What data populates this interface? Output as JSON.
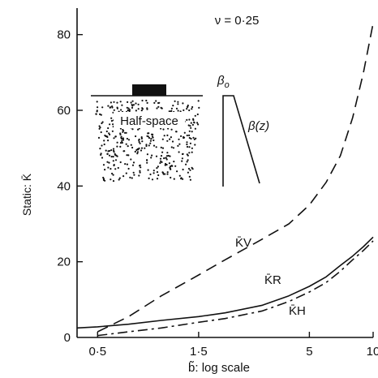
{
  "chart_data": {
    "type": "line",
    "title": "ν = 0·25",
    "xlabel": "b̃: log scale",
    "ylabel": "Static: K̄",
    "x_scale": "log",
    "xlim": [
      0.4,
      10
    ],
    "ylim": [
      0,
      87
    ],
    "x_ticks": [
      {
        "value": 0.5,
        "label": "0·5"
      },
      {
        "value": 1.5,
        "label": "1·5"
      },
      {
        "value": 5,
        "label": "5"
      },
      {
        "value": 10,
        "label": "10"
      }
    ],
    "y_ticks": [
      {
        "value": 0,
        "label": "0"
      },
      {
        "value": 20,
        "label": "20"
      },
      {
        "value": 40,
        "label": "40"
      },
      {
        "value": 60,
        "label": "60"
      },
      {
        "value": 80,
        "label": "80"
      }
    ],
    "grid": false,
    "series": [
      {
        "name": "K̄V",
        "style": "dashed",
        "x": [
          0.5,
          0.7,
          1.0,
          1.5,
          2.0,
          3.0,
          4.0,
          5.0,
          6.0,
          7.0,
          8.0,
          9.0,
          10.0
        ],
        "y": [
          1.5,
          5.5,
          11.0,
          16.5,
          20.5,
          26.0,
          30.0,
          35.0,
          41.0,
          48.0,
          58.0,
          70.0,
          83.0
        ]
      },
      {
        "name": "K̄R",
        "style": "solid",
        "x": [
          0.4,
          0.5,
          0.7,
          1.0,
          1.5,
          2.0,
          3.0,
          4.0,
          5.0,
          6.0,
          7.0,
          8.0,
          9.0,
          10.0
        ],
        "y": [
          2.5,
          2.8,
          3.5,
          4.5,
          5.5,
          6.5,
          8.5,
          11.0,
          13.5,
          16.0,
          19.0,
          21.5,
          24.0,
          26.5
        ]
      },
      {
        "name": "K̄H",
        "style": "dashdot",
        "x": [
          0.5,
          0.7,
          1.0,
          1.5,
          2.0,
          3.0,
          4.0,
          5.0,
          6.0,
          7.0,
          8.0,
          9.0,
          10.0
        ],
        "y": [
          0.5,
          1.5,
          2.5,
          4.0,
          5.0,
          7.0,
          9.5,
          12.0,
          14.5,
          17.5,
          20.5,
          23.0,
          25.5
        ]
      }
    ],
    "annotations": {
      "inset_label": "Half-space",
      "beta0": "β",
      "beta0_sub": "o",
      "betaz": "β(z)"
    }
  }
}
